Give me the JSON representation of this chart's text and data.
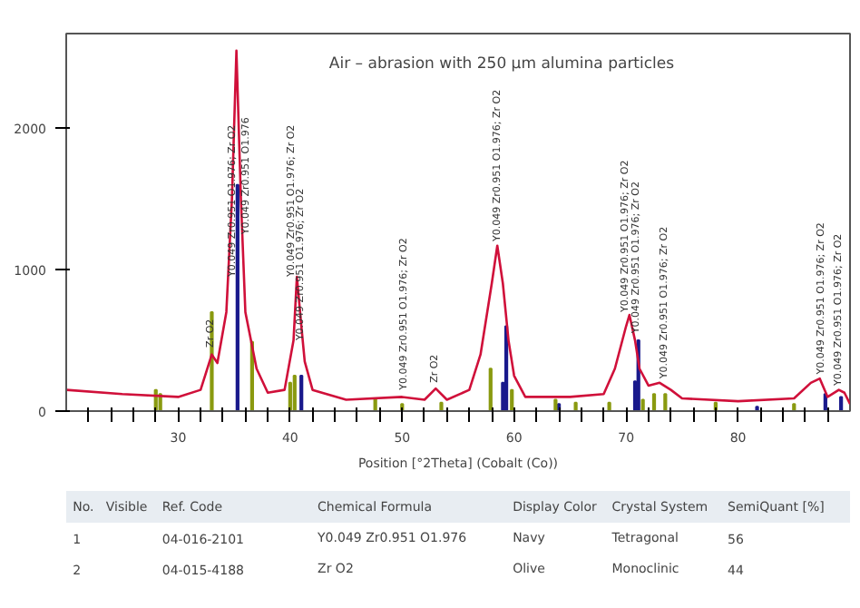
{
  "chart_data": [
    {
      "type": "line",
      "title": "Air – abrasion with 250 µm alumina particles",
      "xlabel": "Position [°2Theta] (Cobalt (Co))",
      "xlim": [
        20,
        90
      ],
      "ylim": [
        0,
        2670
      ],
      "yticks": [
        0,
        1000,
        2000
      ],
      "xticks": [
        {
          "value": 22,
          "label": null
        },
        {
          "value": 24,
          "label": null
        },
        {
          "value": 26,
          "label": null
        },
        {
          "value": 28,
          "label": null
        },
        30,
        {
          "value": 32,
          "label": null
        },
        {
          "value": 34,
          "label": null
        },
        {
          "value": 36,
          "label": null
        },
        {
          "value": 38,
          "label": null
        },
        40,
        {
          "value": 42,
          "label": null
        },
        {
          "value": 44,
          "label": null
        },
        {
          "value": 46,
          "label": null
        },
        {
          "value": 48,
          "label": null
        },
        50,
        {
          "value": 52,
          "label": null
        },
        {
          "value": 54,
          "label": null
        },
        {
          "value": 56,
          "label": null
        },
        {
          "value": 58,
          "label": null
        },
        60,
        {
          "value": 62,
          "label": null
        },
        {
          "value": 64,
          "label": null
        },
        {
          "value": 66,
          "label": null
        },
        {
          "value": 68,
          "label": null
        },
        70,
        {
          "value": 72,
          "label": null
        },
        {
          "value": 74,
          "label": null
        },
        {
          "value": 76,
          "label": null
        },
        {
          "value": 78,
          "label": null
        },
        80,
        {
          "value": 82,
          "label": null
        },
        {
          "value": 84,
          "label": null
        },
        {
          "value": 86,
          "label": null
        },
        {
          "value": 88,
          "label": null
        }
      ],
      "grid": false,
      "series": [
        {
          "type": "bar",
          "color": "#1a1a8c",
          "x": [
            35.3,
            41.0,
            59.0,
            59.3,
            64.0,
            70.8,
            71.1,
            81.7,
            87.8,
            89.2
          ],
          "values": [
            1600,
            250,
            200,
            600,
            50,
            210,
            500,
            30,
            120,
            100
          ]
        },
        {
          "type": "bar",
          "color": "#8a9a10",
          "x": [
            28.0,
            28.4,
            33.0,
            36.6,
            40.0,
            40.4,
            47.6,
            50.0,
            53.5,
            57.9,
            59.8,
            63.7,
            65.5,
            68.5,
            71.5,
            72.5,
            73.5,
            78.0,
            85.0
          ],
          "values": [
            150,
            120,
            700,
            490,
            200,
            250,
            90,
            50,
            60,
            300,
            150,
            80,
            60,
            60,
            80,
            120,
            120,
            60,
            50
          ]
        },
        {
          "type": "line",
          "color": "#d0103a",
          "x": [
            20,
            25,
            30,
            32,
            33,
            33.5,
            34.3,
            34.8,
            35.2,
            35.6,
            36,
            37,
            38,
            39.5,
            40.3,
            40.6,
            41,
            41.3,
            42,
            45,
            50,
            52,
            53,
            54,
            56,
            57,
            58,
            58.5,
            59,
            59.5,
            60,
            61,
            65,
            68,
            69,
            70,
            70.3,
            70.8,
            71.2,
            72,
            73,
            74,
            75,
            80,
            85,
            86.5,
            87.3,
            88,
            89,
            89.5,
            90
          ],
          "values": [
            150,
            120,
            100,
            150,
            400,
            340,
            700,
            1500,
            2550,
            1500,
            700,
            300,
            130,
            150,
            500,
            950,
            600,
            350,
            150,
            80,
            100,
            80,
            160,
            80,
            150,
            400,
            900,
            1170,
            900,
            500,
            250,
            100,
            100,
            120,
            300,
            600,
            680,
            500,
            300,
            180,
            200,
            150,
            90,
            70,
            90,
            200,
            230,
            100,
            150,
            130,
            50
          ]
        }
      ],
      "annotations": [
        {
          "text": "Zr O2",
          "x": 33.0,
          "y": 450
        },
        {
          "text": "Y0.049 Zr0.951 O1.976; Zr O2",
          "x": 34.9,
          "y": 950
        },
        {
          "text": "Y0.049 Zr0.951 O1.976",
          "x": 36.1,
          "y": 1250
        },
        {
          "text": "Y0.049 Zr0.951 O1.976; Zr O2",
          "x": 40.2,
          "y": 950
        },
        {
          "text": "Y0.049 Zr0.951 O1.976; Zr O2",
          "x": 41.0,
          "y": 500
        },
        {
          "text": "Y0.049 Zr0.951 O1.976; Zr O2",
          "x": 50.2,
          "y": 150
        },
        {
          "text": "Zr O2",
          "x": 53.0,
          "y": 200
        },
        {
          "text": "Y0.049 Zr0.951 O1.976; Zr O2",
          "x": 58.6,
          "y": 1200
        },
        {
          "text": "Y0.049 Zr0.951 O1.976; Zr O2",
          "x": 70.0,
          "y": 700
        },
        {
          "text": "Y0.049 Zr0.951 O1.976; Zr O2",
          "x": 71.0,
          "y": 550
        },
        {
          "text": "Y0.049 Zr0.951 O1.976; Zr O2",
          "x": 73.5,
          "y": 230
        },
        {
          "text": "Y0.049 Zr0.951 O1.976; Zr O2",
          "x": 87.5,
          "y": 260
        },
        {
          "text": "Y0.049 Zr0.951 O1.976; Zr O2",
          "x": 89.0,
          "y": 180
        }
      ]
    },
    {
      "type": "other",
      "annotations": [
        "No.\tVisible\tRef. Code\tChemical Formula\tDisplay Color\tCrystal System\tSemiQuant [%]",
        "1\t\t04-016-2101\tY0.049 Zr0.951 O1.976\tNavy\tTetragonal\t56",
        "2\t\t04-015-4188\tZr O2\tOlive\tMonoclinic\t44"
      ]
    }
  ]
}
